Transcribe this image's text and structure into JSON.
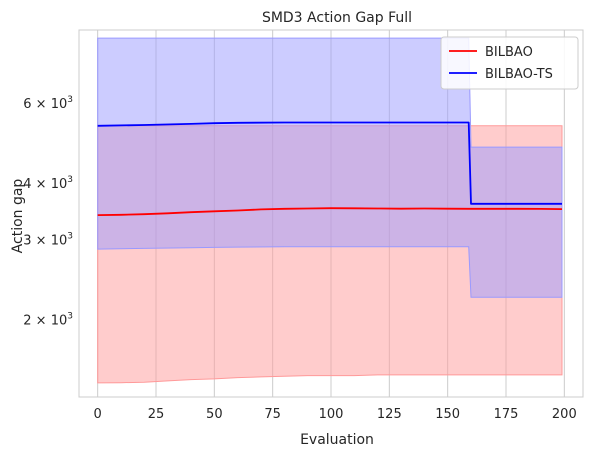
{
  "chart_data": {
    "type": "line",
    "title": "SMD3 Action Gap Full",
    "xlabel": "Evaluation",
    "ylabel": "Action gap",
    "yscale": "log",
    "xlim": [
      -8,
      208
    ],
    "ylim": [
      1350,
      8700
    ],
    "grid": true,
    "legend_position": "top-right",
    "x_ticks": [
      0,
      25,
      50,
      75,
      100,
      125,
      150,
      175,
      200
    ],
    "x_tick_labels": [
      "0",
      "25",
      "50",
      "75",
      "100",
      "125",
      "150",
      "175",
      "200"
    ],
    "y_ticks": [
      {
        "value": 2000,
        "base": "2 × 10",
        "exp": "3"
      },
      {
        "value": 3000,
        "base": "3 × 10",
        "exp": "3"
      },
      {
        "value": 4000,
        "base": "4 × 10",
        "exp": "3"
      },
      {
        "value": 6000,
        "base": "6 × 10",
        "exp": "3"
      }
    ],
    "series": [
      {
        "name": "BILBAO",
        "color": "#ff0000",
        "band_color": "#ff9999",
        "x": [
          0,
          10,
          20,
          30,
          40,
          50,
          60,
          70,
          80,
          90,
          100,
          110,
          120,
          130,
          140,
          150,
          160,
          170,
          180,
          190,
          199
        ],
        "y": [
          3400,
          3405,
          3415,
          3430,
          3450,
          3465,
          3480,
          3500,
          3510,
          3515,
          3520,
          3518,
          3515,
          3512,
          3515,
          3512,
          3510,
          3510,
          3510,
          3508,
          3505
        ],
        "lower": [
          1450,
          1452,
          1455,
          1465,
          1475,
          1480,
          1490,
          1495,
          1500,
          1505,
          1505,
          1505,
          1510,
          1510,
          1510,
          1510,
          1510,
          1510,
          1510,
          1510,
          1510
        ],
        "upper": [
          5350,
          5350,
          5350,
          5350,
          5350,
          5350,
          5350,
          5350,
          5350,
          5350,
          5350,
          5350,
          5350,
          5350,
          5350,
          5350,
          5350,
          5350,
          5350,
          5350,
          5350
        ]
      },
      {
        "name": "BILBAO-TS",
        "color": "#0000ff",
        "band_color": "#9999ff",
        "x": [
          0,
          20,
          40,
          50,
          60,
          80,
          100,
          120,
          140,
          159,
          160,
          170,
          180,
          190,
          199
        ],
        "y": [
          5350,
          5370,
          5400,
          5420,
          5430,
          5440,
          5440,
          5440,
          5440,
          5440,
          3600,
          3600,
          3600,
          3600,
          3600
        ],
        "lower": [
          2860,
          2870,
          2880,
          2885,
          2890,
          2895,
          2895,
          2895,
          2895,
          2895,
          2240,
          2240,
          2240,
          2240,
          2240
        ],
        "upper": [
          8350,
          8350,
          8350,
          8350,
          8350,
          8350,
          8350,
          8350,
          8350,
          8350,
          4800,
          4800,
          4800,
          4800,
          4800
        ]
      }
    ]
  }
}
